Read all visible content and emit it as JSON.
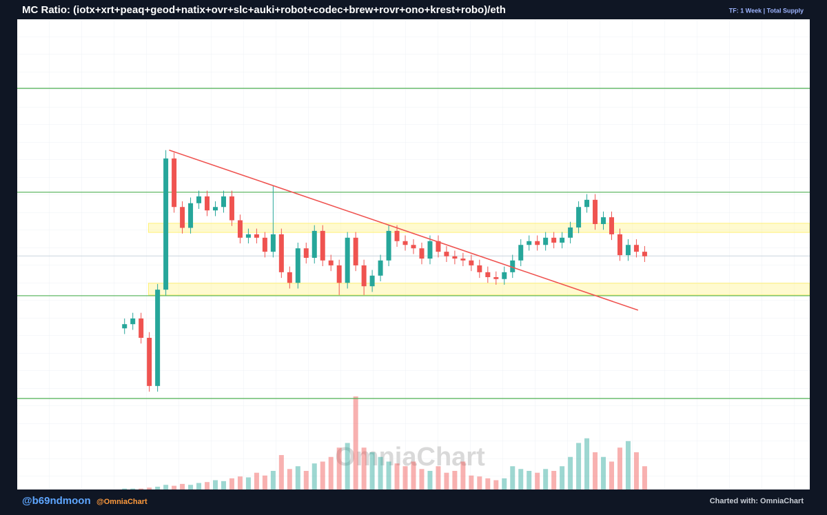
{
  "chart_data": {
    "type": "candlestick",
    "title": "MC Ratio: (iotx+xrt+peaq+geod+natix+ovr+slc+auki+robot+codec+brew+rovr+ono+krest+robo)/eth",
    "subtitle": "TF: 1 Week | Total Supply",
    "watermark": "OmniaChart",
    "xlim": [
      -13,
      83
    ],
    "ylim": [
      0,
      100
    ],
    "y2lim": [
      0,
      100
    ],
    "up_color": "#26a69a",
    "down_color": "#ef5350",
    "open": [
      18.5,
      19.6,
      21.1,
      16,
      3.3,
      28.7,
      63.3,
      50.5,
      45,
      51.5,
      53.3,
      49.6,
      50.5,
      53.3,
      47,
      42.4,
      43.3,
      42.4,
      38.7,
      43.3,
      33.3,
      30.5,
      39.6,
      37.1,
      44.2,
      36.4,
      35.1,
      30.5,
      42.4,
      35.1,
      29.6,
      32.4,
      36.4,
      44.2,
      41.5,
      40.5,
      39.6,
      36.9,
      41.5,
      38.7,
      37.5,
      36.9,
      36.4,
      35.1,
      33.3,
      32,
      31.5,
      33.3,
      36.4,
      40.5,
      41.5,
      40.5,
      42.4,
      41.1,
      42.4,
      45.1,
      50.5,
      52.4,
      46,
      47.8,
      43.3,
      37.8,
      40.5,
      38.7
    ],
    "high": [
      21.1,
      22.6,
      22.6,
      17.5,
      30.2,
      65.5,
      64.8,
      52,
      53,
      54.8,
      54.8,
      52,
      54.8,
      54.8,
      48.5,
      44.8,
      44.8,
      43.9,
      56,
      44.8,
      34.8,
      41.1,
      41.1,
      45.7,
      45.7,
      37.9,
      36.6,
      43.9,
      43.9,
      36.6,
      33.9,
      37.9,
      45.7,
      45.7,
      43,
      42,
      41.1,
      43,
      43,
      40.2,
      39,
      38.4,
      37.9,
      36.6,
      34.8,
      33.5,
      34.8,
      37.9,
      42,
      43,
      43,
      43.9,
      43.9,
      43.9,
      46.6,
      52,
      53.9,
      53.9,
      49.3,
      49.3,
      44.8,
      42,
      42,
      40.2
    ],
    "low": [
      17,
      18.1,
      14.5,
      1.8,
      1.8,
      27.2,
      49,
      43.5,
      43.5,
      50,
      48.1,
      48.1,
      49,
      45.5,
      40.9,
      40.9,
      40.9,
      37.2,
      37.2,
      31.8,
      29,
      29,
      35.6,
      35.6,
      34.9,
      33.6,
      27.3,
      29,
      33.6,
      27.3,
      28.1,
      30.9,
      34.9,
      40,
      39,
      38.1,
      35.4,
      35.4,
      37.2,
      36,
      35.4,
      34.9,
      33.6,
      31.8,
      30.5,
      30,
      30,
      31.8,
      34.9,
      39,
      39,
      39,
      39.6,
      39.6,
      40.9,
      43.6,
      49,
      44.5,
      44.5,
      41.8,
      36.3,
      36.3,
      37.2,
      36
    ],
    "close": [
      19.6,
      21.1,
      16,
      3.3,
      28.7,
      63.3,
      50.5,
      45,
      51.5,
      53.3,
      49.6,
      50.5,
      53.3,
      47,
      42.4,
      43.3,
      42.4,
      38.7,
      43.3,
      33.3,
      30.5,
      39.6,
      37.1,
      44.2,
      36.4,
      35.1,
      30.5,
      42.4,
      35.1,
      29.6,
      32.4,
      36.4,
      44.2,
      41.5,
      40.5,
      39.6,
      36.9,
      41.5,
      38.7,
      37.5,
      36.9,
      36.4,
      35.1,
      33.3,
      32,
      31.5,
      33.3,
      36.4,
      40.5,
      41.5,
      40.5,
      42.4,
      41.1,
      42.4,
      45.1,
      50.5,
      52.4,
      46,
      47.8,
      43.3,
      37.8,
      40.5,
      38.7,
      37.5
    ],
    "volume": {
      "axis": "y2",
      "values": [
        1,
        1,
        1,
        2,
        3,
        5,
        4,
        6,
        5,
        7,
        8,
        10,
        9,
        12,
        14,
        13,
        18,
        15,
        20,
        37,
        22,
        25,
        20,
        28,
        30,
        35,
        45,
        50,
        100,
        45,
        40,
        35,
        30,
        28,
        25,
        30,
        22,
        20,
        25,
        18,
        20,
        30,
        15,
        14,
        12,
        10,
        12,
        25,
        22,
        20,
        18,
        22,
        20,
        25,
        35,
        50,
        55,
        40,
        35,
        30,
        45,
        52,
        40,
        25
      ]
    },
    "levels": {
      "color": "#4caf50",
      "values": [
        81.8,
        54.4,
        27.1,
        0
      ]
    },
    "zones": {
      "color": "#fff176",
      "values": [
        [
          43.8,
          46.2
        ],
        [
          27.3,
          30.4
        ]
      ]
    },
    "price_line": {
      "color": "#c9d3dd",
      "value": 37.6
    },
    "trendline": {
      "color": "#ef5350",
      "x": [
        5.4,
        62.2
      ],
      "y": [
        65.5,
        23.3
      ]
    }
  },
  "footer": {
    "author": "@b69ndmoon",
    "brand": "@OmniaChart",
    "credit": "Charted with: OmniaChart"
  }
}
